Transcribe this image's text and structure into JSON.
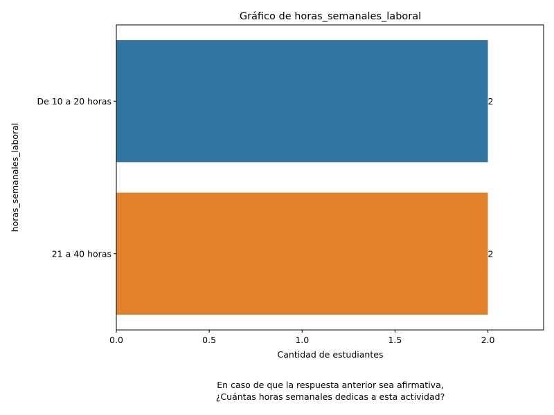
{
  "chart_data": {
    "type": "bar",
    "orientation": "horizontal",
    "title": "Gráfico de horas_semanales_laboral",
    "xlabel": "Cantidad de estudiantes",
    "ylabel": "horas_semanales_laboral",
    "categories": [
      "De 10 a 20 horas",
      "21 a 40 horas"
    ],
    "values": [
      2,
      2
    ],
    "value_labels": [
      "2",
      "2"
    ],
    "colors": [
      "#3274a1",
      "#e1812c"
    ],
    "xlim": [
      0,
      2.3
    ],
    "xticks": [
      0,
      0.5,
      1,
      1.5,
      2
    ],
    "xtick_labels": [
      "0.0",
      "0.5",
      "1.0",
      "1.5",
      "2.0"
    ],
    "grid": false,
    "legend": "none"
  },
  "caption": {
    "line1": "En caso de que la respuesta anterior sea afirmativa,",
    "line2": "¿Cuántas horas semanales dedicas a esta actividad?"
  }
}
